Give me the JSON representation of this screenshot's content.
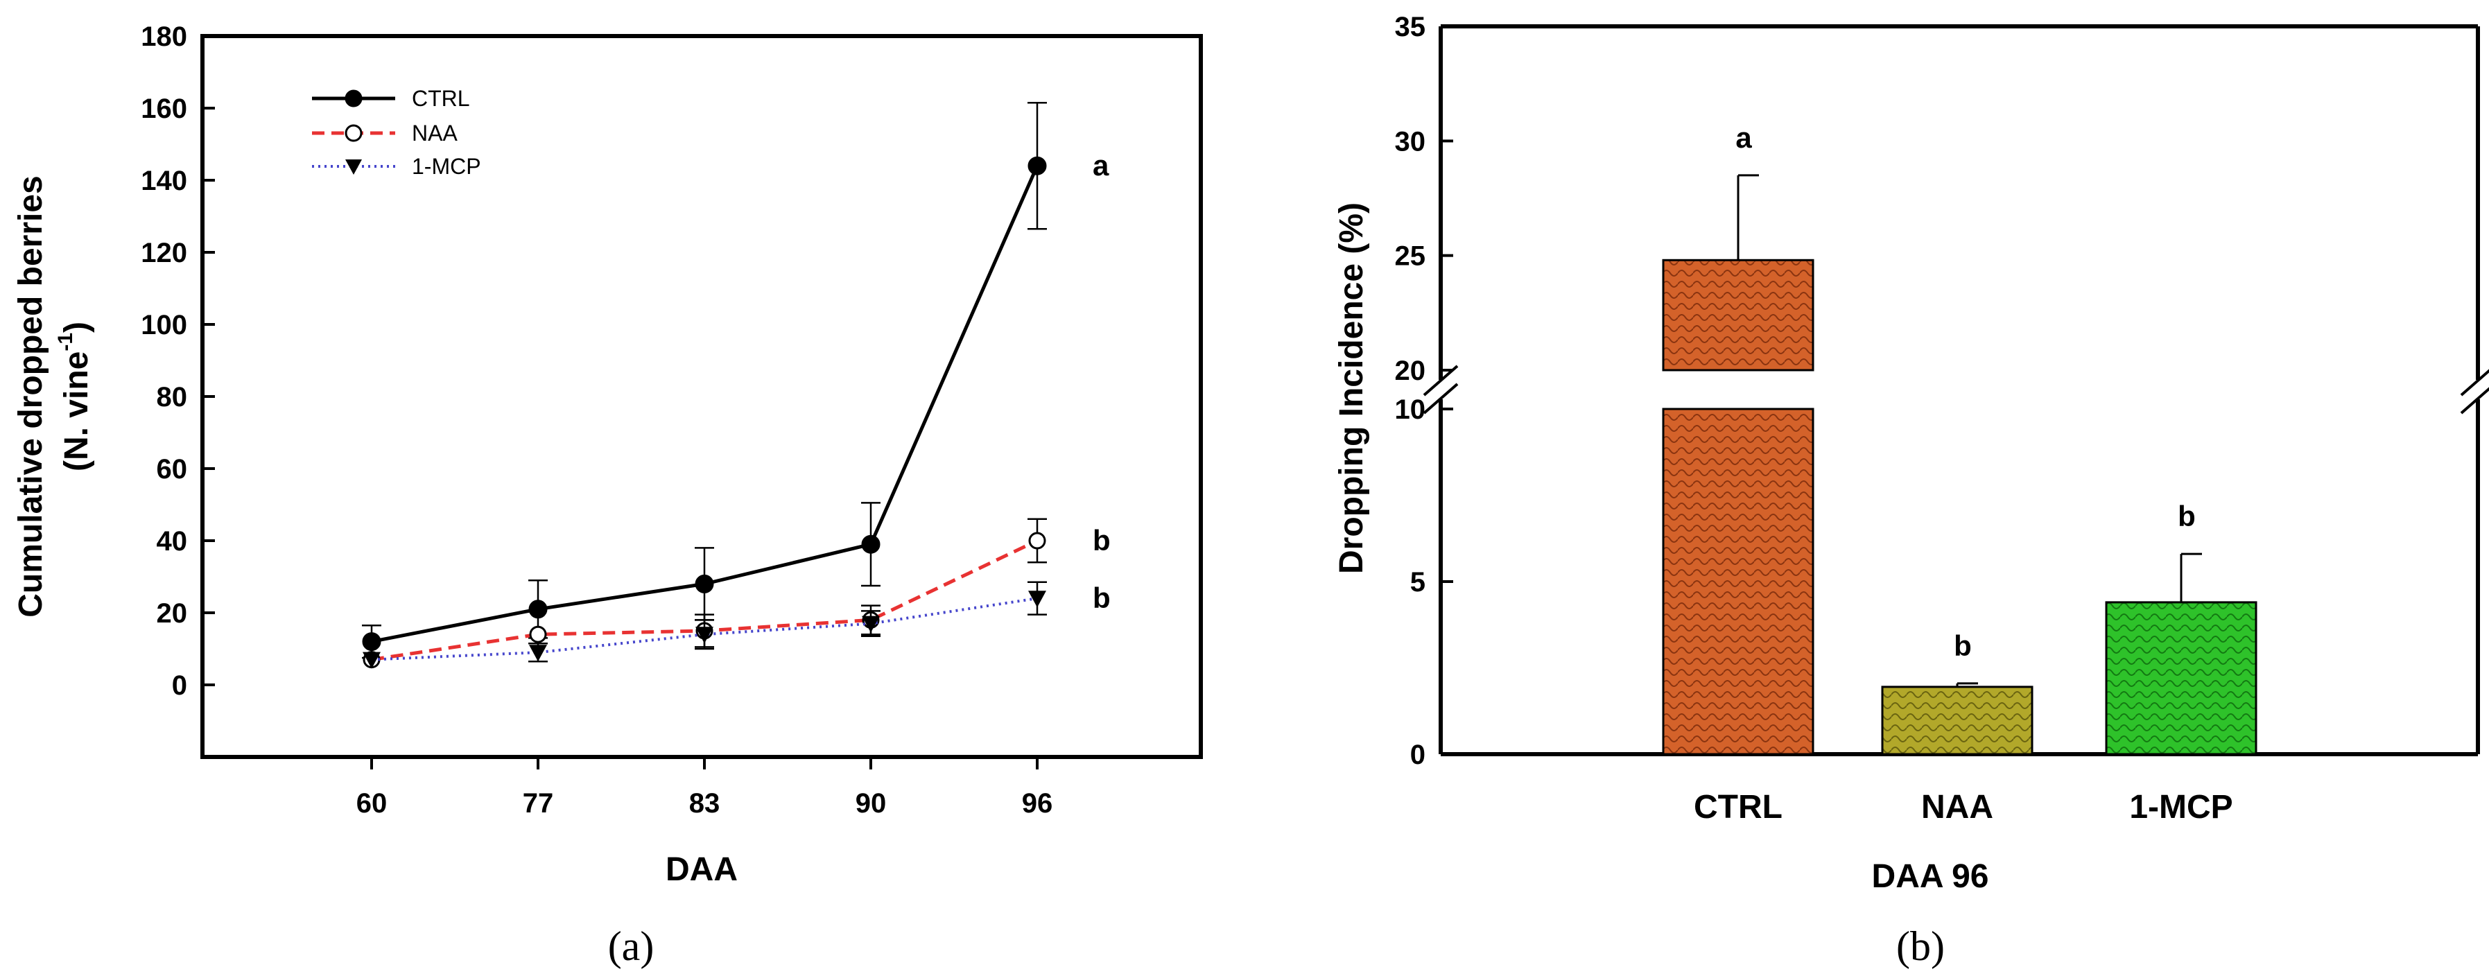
{
  "chart_data": [
    {
      "type": "line",
      "panel_label": "(a)",
      "xlabel": "DAA",
      "ylabel": "Cumulative dropped berries",
      "ylabel_unit_line": "(N. vine",
      "ylabel_unit_sup": "-1",
      "ylabel_unit_close": ")",
      "categories": [
        "60",
        "77",
        "83",
        "90",
        "96"
      ],
      "ylim": [
        -20,
        180
      ],
      "yticks": [
        0,
        20,
        40,
        60,
        80,
        100,
        120,
        140,
        160,
        180
      ],
      "legend_position": "top-left",
      "series": [
        {
          "name": "CTRL",
          "color": "#000000",
          "dash": "solid",
          "marker": "filled-circle",
          "values": [
            12,
            21,
            28,
            39,
            144
          ],
          "errors": [
            4.5,
            8,
            10,
            11.5,
            17.5
          ]
        },
        {
          "name": "NAA",
          "color": "#e83232",
          "dash": "dashed",
          "marker": "open-circle",
          "values": [
            7,
            14,
            15,
            18,
            40
          ],
          "errors": [
            0,
            0,
            4.5,
            4,
            6
          ]
        },
        {
          "name": "1-MCP",
          "color": "#4646cc",
          "dash": "dotted",
          "marker": "filled-triangle-down",
          "values": [
            7,
            9,
            14,
            17,
            24
          ],
          "errors": [
            0,
            2.5,
            4,
            3.5,
            4.5
          ]
        }
      ],
      "significance_letters": [
        "a",
        "b",
        "b"
      ]
    },
    {
      "type": "bar",
      "panel_label": "(b)",
      "xlabel": "DAA 96",
      "ylabel": "Dropping Incidence (%)",
      "categories": [
        "CTRL",
        "NAA",
        "1-MCP"
      ],
      "values": [
        24.8,
        1.95,
        4.4
      ],
      "errors": [
        3.7,
        0.1,
        1.4
      ],
      "colors": [
        "#d4622a",
        "#b2a82a",
        "#2ec22a"
      ],
      "significance_letters": [
        "a",
        "b",
        "b"
      ],
      "broken_axis": true,
      "yticks_lower": [
        0,
        5,
        10
      ],
      "yticks_upper": [
        20,
        25,
        30,
        35
      ],
      "ylim_lower": [
        0,
        10
      ],
      "ylim_upper": [
        20,
        35
      ]
    }
  ]
}
